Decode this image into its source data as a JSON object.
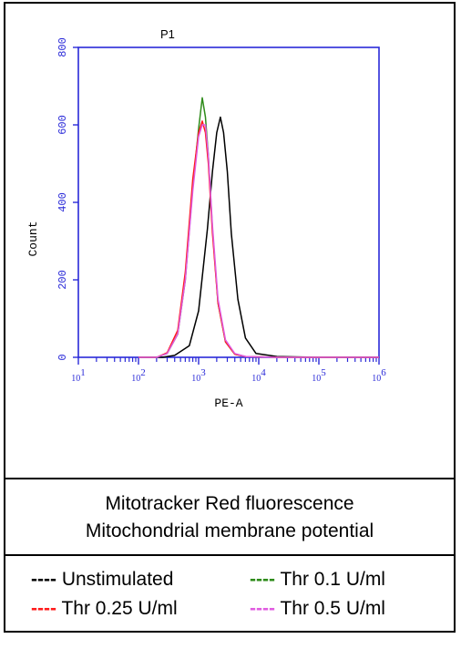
{
  "chart_data": {
    "type": "line",
    "title": "P1",
    "xlabel": "PE-A",
    "ylabel": "Count",
    "xscale": "log",
    "xlim": [
      10,
      1000000
    ],
    "ylim": [
      0,
      800
    ],
    "yticks": [
      0,
      200,
      400,
      600,
      800
    ],
    "ytick_labels": [
      "0",
      "200",
      "400",
      "600",
      "800"
    ],
    "xticks": [
      10,
      100,
      1000,
      10000,
      100000,
      1000000
    ],
    "xtick_labels": [
      {
        "base": "10",
        "exp": "1"
      },
      {
        "base": "10",
        "exp": "2"
      },
      {
        "base": "10",
        "exp": "3"
      },
      {
        "base": "10",
        "exp": "4"
      },
      {
        "base": "10",
        "exp": "5"
      },
      {
        "base": "10",
        "exp": "6"
      }
    ],
    "series": [
      {
        "name": "Unstimulated",
        "color": "#000000",
        "x": [
          100,
          250,
          400,
          700,
          1000,
          1400,
          1700,
          2000,
          2300,
          2600,
          3000,
          3500,
          4500,
          6000,
          9000,
          20000,
          100000,
          1000000
        ],
        "y": [
          0,
          0,
          5,
          30,
          120,
          330,
          480,
          580,
          620,
          580,
          480,
          320,
          150,
          50,
          10,
          2,
          0,
          0
        ]
      },
      {
        "name": "Thr 0.1 U/ml",
        "color": "#2e8b1a",
        "x": [
          100,
          200,
          300,
          450,
          600,
          800,
          1000,
          1150,
          1300,
          1450,
          1700,
          2100,
          2800,
          4000,
          6000,
          20000,
          100000,
          1000000
        ],
        "y": [
          0,
          0,
          10,
          60,
          200,
          440,
          590,
          670,
          620,
          520,
          330,
          140,
          40,
          8,
          2,
          0,
          0,
          0
        ]
      },
      {
        "name": "Thr 0.25 U/ml",
        "color": "#ff1a1a",
        "x": [
          100,
          200,
          300,
          450,
          600,
          800,
          1000,
          1150,
          1300,
          1450,
          1700,
          2100,
          2800,
          4000,
          6000,
          20000,
          100000,
          1000000
        ],
        "y": [
          0,
          0,
          12,
          70,
          220,
          460,
          580,
          610,
          580,
          500,
          320,
          140,
          40,
          8,
          2,
          0,
          0,
          0
        ]
      },
      {
        "name": "Thr 0.5 U/ml",
        "color": "#e05be0",
        "x": [
          100,
          200,
          300,
          450,
          600,
          800,
          1000,
          1150,
          1300,
          1450,
          1700,
          2100,
          2800,
          4000,
          6000,
          20000,
          100000,
          1000000
        ],
        "y": [
          0,
          0,
          10,
          60,
          200,
          430,
          570,
          600,
          600,
          520,
          340,
          150,
          45,
          10,
          2,
          0,
          0,
          0
        ]
      }
    ],
    "grid": false
  },
  "caption": {
    "line1": "Mitotracker Red fluorescence",
    "line2": "Mitochondrial membrane potential"
  },
  "legend": {
    "dash": "----",
    "items": [
      {
        "label": "Unstimulated",
        "color": "#000000"
      },
      {
        "label": "Thr 0.1 U/ml",
        "color": "#2e8b1a"
      },
      {
        "label": "Thr 0.25 U/ml",
        "color": "#ff1a1a"
      },
      {
        "label": "Thr 0.5 U/ml",
        "color": "#e05be0"
      }
    ]
  },
  "colors": {
    "frame": "#2a2ad8",
    "tick_labels": "#2a2ad8"
  }
}
